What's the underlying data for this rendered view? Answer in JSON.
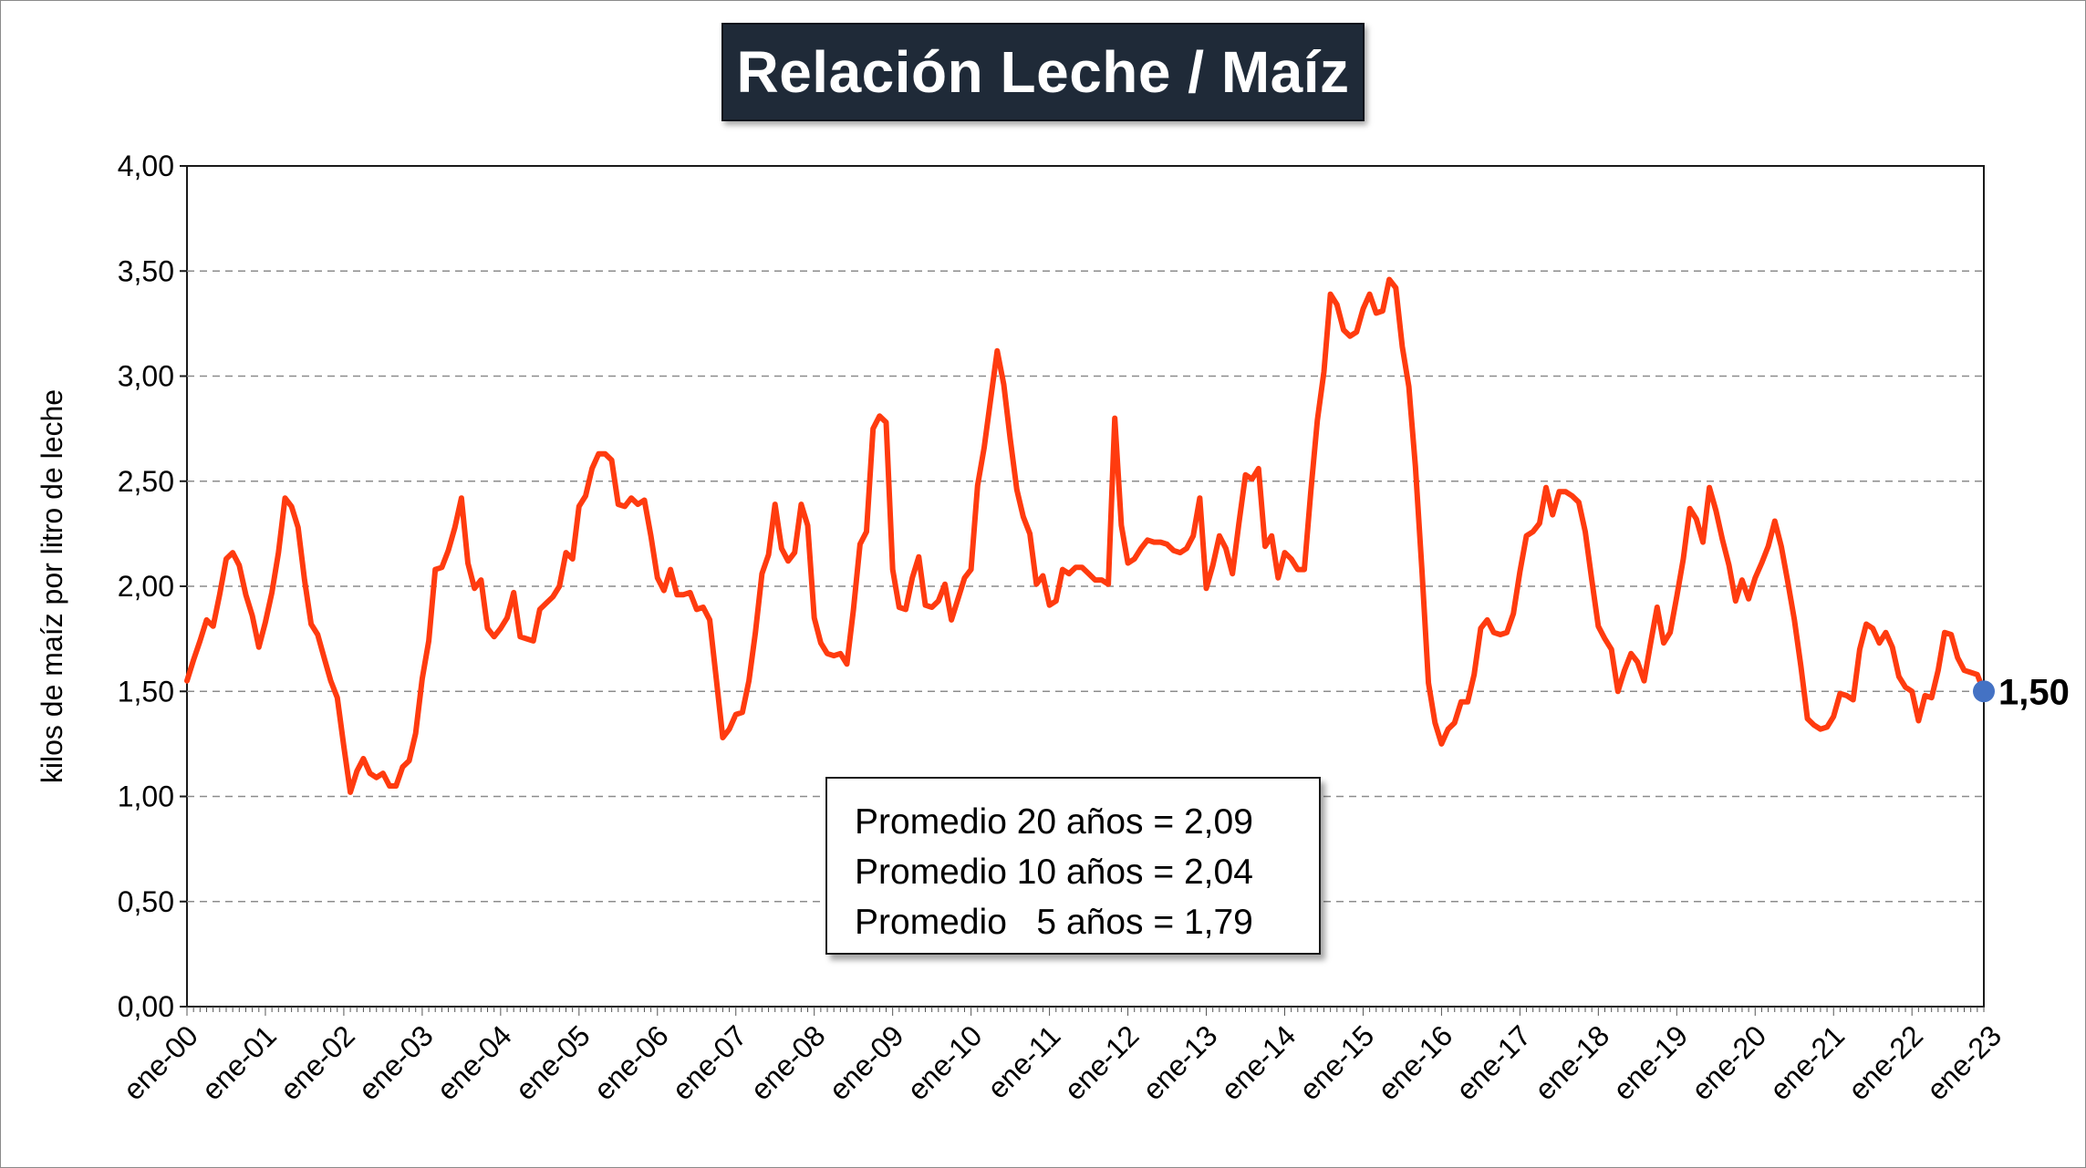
{
  "chart_data": {
    "type": "line",
    "title": "Relación Leche / Maíz",
    "ylabel": "kilos de maíz por litro de leche",
    "xlabel": "",
    "ylim": [
      0,
      4
    ],
    "y_ticks": [
      "0,00",
      "0,50",
      "1,00",
      "1,50",
      "2,00",
      "2,50",
      "3,00",
      "3,50",
      "4,00"
    ],
    "x_ticks": [
      "ene-00",
      "ene-01",
      "ene-02",
      "ene-03",
      "ene-04",
      "ene-05",
      "ene-06",
      "ene-07",
      "ene-08",
      "ene-09",
      "ene-10",
      "ene-11",
      "ene-12",
      "ene-13",
      "ene-14",
      "ene-15",
      "ene-16",
      "ene-17",
      "ene-18",
      "ene-19",
      "ene-20",
      "ene-21",
      "ene-22",
      "ene-23"
    ],
    "grid": "horizontal dashed",
    "series": [
      {
        "name": "",
        "color": "#ff3b0f",
        "x_start": "ene-00",
        "frequency": "monthly",
        "values": [
          1.55,
          1.65,
          1.74,
          1.84,
          1.81,
          1.96,
          2.13,
          2.16,
          2.1,
          1.96,
          1.86,
          1.71,
          1.83,
          1.97,
          2.16,
          2.42,
          2.38,
          2.28,
          2.03,
          1.82,
          1.77,
          1.66,
          1.55,
          1.47,
          1.24,
          1.02,
          1.12,
          1.18,
          1.11,
          1.09,
          1.11,
          1.05,
          1.05,
          1.14,
          1.17,
          1.3,
          1.56,
          1.74,
          2.08,
          2.09,
          2.17,
          2.28,
          2.42,
          2.11,
          1.99,
          2.03,
          1.8,
          1.76,
          1.8,
          1.85,
          1.97,
          1.76,
          1.75,
          1.74,
          1.89,
          1.92,
          1.95,
          2.0,
          2.16,
          2.13,
          2.38,
          2.43,
          2.56,
          2.63,
          2.63,
          2.6,
          2.39,
          2.38,
          2.42,
          2.39,
          2.41,
          2.24,
          2.04,
          1.98,
          2.08,
          1.96,
          1.96,
          1.97,
          1.89,
          1.9,
          1.84,
          1.56,
          1.28,
          1.32,
          1.39,
          1.4,
          1.55,
          1.78,
          2.06,
          2.15,
          2.39,
          2.18,
          2.12,
          2.16,
          2.39,
          2.29,
          1.85,
          1.73,
          1.68,
          1.67,
          1.68,
          1.63,
          1.89,
          2.2,
          2.26,
          2.75,
          2.81,
          2.78,
          2.08,
          1.9,
          1.89,
          2.04,
          2.14,
          1.91,
          1.9,
          1.93,
          2.01,
          1.84,
          1.94,
          2.04,
          2.08,
          2.48,
          2.66,
          2.89,
          3.12,
          2.96,
          2.7,
          2.46,
          2.33,
          2.25,
          2.01,
          2.05,
          1.91,
          1.93,
          2.08,
          2.06,
          2.09,
          2.09,
          2.06,
          2.03,
          2.03,
          2.01,
          2.8,
          2.29,
          2.11,
          2.13,
          2.18,
          2.22,
          2.21,
          2.21,
          2.2,
          2.17,
          2.16,
          2.18,
          2.24,
          2.42,
          1.99,
          2.1,
          2.24,
          2.18,
          2.06,
          2.3,
          2.53,
          2.51,
          2.56,
          2.19,
          2.24,
          2.04,
          2.16,
          2.13,
          2.08,
          2.08,
          2.45,
          2.79,
          3.02,
          3.39,
          3.34,
          3.22,
          3.19,
          3.21,
          3.32,
          3.39,
          3.3,
          3.31,
          3.46,
          3.42,
          3.14,
          2.95,
          2.57,
          2.08,
          1.54,
          1.35,
          1.25,
          1.32,
          1.35,
          1.45,
          1.45,
          1.58,
          1.8,
          1.84,
          1.78,
          1.77,
          1.78,
          1.87,
          2.07,
          2.24,
          2.26,
          2.3,
          2.47,
          2.34,
          2.45,
          2.45,
          2.43,
          2.4,
          2.26,
          2.03,
          1.81,
          1.75,
          1.7,
          1.5,
          1.6,
          1.68,
          1.64,
          1.55,
          1.73,
          1.9,
          1.73,
          1.78,
          1.95,
          2.13,
          2.37,
          2.32,
          2.21,
          2.47,
          2.36,
          2.22,
          2.1,
          1.93,
          2.03,
          1.94,
          2.04,
          2.11,
          2.19,
          2.31,
          2.19,
          2.02,
          1.84,
          1.62,
          1.37,
          1.34,
          1.32,
          1.33,
          1.38,
          1.49,
          1.48,
          1.46,
          1.7,
          1.82,
          1.8,
          1.73,
          1.78,
          1.71,
          1.57,
          1.52,
          1.5,
          1.36,
          1.48,
          1.47,
          1.6,
          1.78,
          1.77,
          1.66,
          1.6,
          1.59,
          1.58,
          1.5
        ]
      }
    ],
    "last_value_label": "1,50",
    "last_value_marker_color": "#4472c4",
    "annotations": [
      "Promedio 20 años = 2,09",
      "Promedio 10 años = 2,04",
      "Promedio   5 años = 1,79"
    ]
  }
}
